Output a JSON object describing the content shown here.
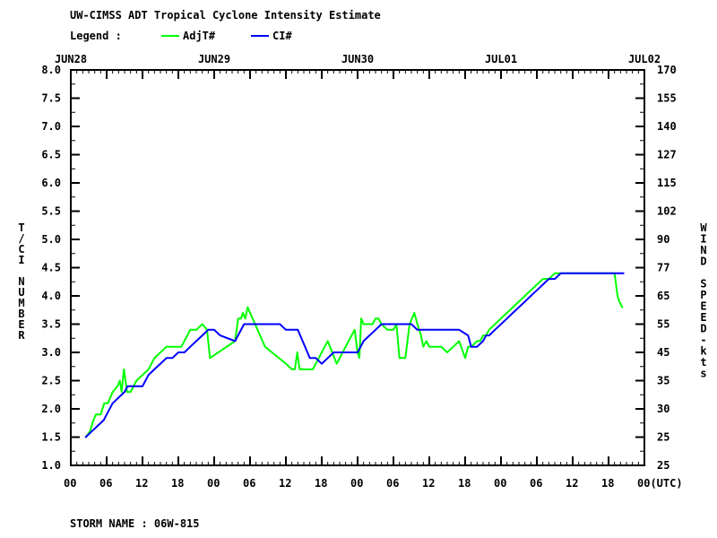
{
  "chart_data": {
    "type": "line",
    "title": "UW-CIMSS ADT Tropical Cyclone Intensity Estimate",
    "legend_prefix": "Legend :",
    "legend_placement": "top-left",
    "grid": false,
    "x_day_labels": [
      "JUN28",
      "JUN29",
      "JUN30",
      "JUL01",
      "JUL02"
    ],
    "x_hour_labels": [
      "00",
      "06",
      "12",
      "18",
      "00",
      "06",
      "12",
      "18",
      "00",
      "06",
      "12",
      "18",
      "00",
      "06",
      "12",
      "18",
      "00(UTC)"
    ],
    "xlim_hours": [
      0,
      96
    ],
    "ylabel_left": "T/CI NUMBER",
    "ylabel_right": "WIND SPEED-kts",
    "ylim": [
      1.0,
      8.0
    ],
    "y_ticks_left": [
      "1.0",
      "1.5",
      "2.0",
      "2.5",
      "3.0",
      "3.5",
      "4.0",
      "4.5",
      "5.0",
      "5.5",
      "6.0",
      "6.5",
      "7.0",
      "7.5",
      "8.0"
    ],
    "y_ticks_right": [
      "25",
      "25",
      "30",
      "35",
      "45",
      "55",
      "65",
      "77",
      "90",
      "102",
      "115",
      "127",
      "140",
      "155",
      "170"
    ],
    "footer": "STORM NAME : 06W-815",
    "series": [
      {
        "name": "AdjT#",
        "color": "#00ff00",
        "points": [
          [
            2.5,
            1.5
          ],
          [
            3.2,
            1.6
          ],
          [
            3.8,
            1.8
          ],
          [
            4.2,
            1.9
          ],
          [
            5.0,
            1.9
          ],
          [
            5.6,
            2.1
          ],
          [
            6.2,
            2.1
          ],
          [
            7.0,
            2.3
          ],
          [
            7.8,
            2.4
          ],
          [
            8.2,
            2.5
          ],
          [
            8.5,
            2.3
          ],
          [
            8.9,
            2.7
          ],
          [
            9.4,
            2.3
          ],
          [
            10.0,
            2.3
          ],
          [
            11.0,
            2.5
          ],
          [
            12.0,
            2.6
          ],
          [
            13.0,
            2.7
          ],
          [
            14.0,
            2.9
          ],
          [
            15.0,
            3.0
          ],
          [
            16.0,
            3.1
          ],
          [
            17.5,
            3.1
          ],
          [
            18.5,
            3.1
          ],
          [
            19.0,
            3.2
          ],
          [
            19.5,
            3.3
          ],
          [
            20.0,
            3.4
          ],
          [
            21.0,
            3.4
          ],
          [
            22.0,
            3.5
          ],
          [
            22.8,
            3.4
          ],
          [
            23.3,
            2.9
          ],
          [
            27.5,
            3.2
          ],
          [
            28.0,
            3.6
          ],
          [
            28.5,
            3.6
          ],
          [
            28.8,
            3.7
          ],
          [
            29.2,
            3.6
          ],
          [
            29.6,
            3.8
          ],
          [
            32.5,
            3.1
          ],
          [
            36.0,
            2.8
          ],
          [
            37.0,
            2.7
          ],
          [
            37.5,
            2.7
          ],
          [
            37.9,
            3.0
          ],
          [
            38.3,
            2.7
          ],
          [
            40.5,
            2.7
          ],
          [
            41.5,
            2.9
          ],
          [
            42.5,
            3.1
          ],
          [
            43.0,
            3.2
          ],
          [
            44.5,
            2.8
          ],
          [
            45.5,
            3.0
          ],
          [
            47.0,
            3.3
          ],
          [
            47.5,
            3.4
          ],
          [
            48.0,
            3.0
          ],
          [
            48.3,
            2.9
          ],
          [
            48.6,
            3.6
          ],
          [
            49.0,
            3.5
          ],
          [
            50.0,
            3.5
          ],
          [
            50.5,
            3.5
          ],
          [
            51.0,
            3.6
          ],
          [
            51.5,
            3.6
          ],
          [
            52.0,
            3.5
          ],
          [
            53.0,
            3.4
          ],
          [
            54.0,
            3.4
          ],
          [
            54.5,
            3.5
          ],
          [
            55.0,
            2.9
          ],
          [
            56.0,
            2.9
          ],
          [
            56.7,
            3.5
          ],
          [
            57.5,
            3.7
          ],
          [
            58.0,
            3.5
          ],
          [
            58.6,
            3.3
          ],
          [
            59.0,
            3.1
          ],
          [
            59.5,
            3.2
          ],
          [
            60.0,
            3.1
          ],
          [
            61.0,
            3.1
          ],
          [
            62.0,
            3.1
          ],
          [
            63.0,
            3.0
          ],
          [
            64.0,
            3.1
          ],
          [
            65.0,
            3.2
          ],
          [
            66.0,
            2.9
          ],
          [
            66.5,
            3.1
          ],
          [
            67.0,
            3.1
          ],
          [
            68.0,
            3.2
          ],
          [
            68.5,
            3.2
          ],
          [
            69.0,
            3.3
          ],
          [
            69.5,
            3.3
          ],
          [
            70.0,
            3.4
          ],
          [
            71.0,
            3.5
          ],
          [
            72.0,
            3.6
          ],
          [
            73.0,
            3.7
          ],
          [
            74.0,
            3.8
          ],
          [
            75.0,
            3.9
          ],
          [
            76.0,
            4.0
          ],
          [
            77.0,
            4.1
          ],
          [
            78.0,
            4.2
          ],
          [
            79.0,
            4.3
          ],
          [
            80.0,
            4.3
          ],
          [
            81.0,
            4.4
          ],
          [
            85.0,
            4.4
          ],
          [
            88.0,
            4.4
          ],
          [
            91.0,
            4.4
          ],
          [
            91.5,
            4.0
          ],
          [
            91.8,
            3.9
          ],
          [
            92.3,
            3.8
          ]
        ]
      },
      {
        "name": "CI#",
        "color": "#0000ff",
        "points": [
          [
            2.5,
            1.5
          ],
          [
            3.5,
            1.6
          ],
          [
            4.5,
            1.7
          ],
          [
            5.5,
            1.8
          ],
          [
            6.0,
            1.9
          ],
          [
            7.0,
            2.1
          ],
          [
            8.0,
            2.2
          ],
          [
            9.0,
            2.3
          ],
          [
            9.5,
            2.4
          ],
          [
            10.5,
            2.4
          ],
          [
            12.0,
            2.4
          ],
          [
            12.5,
            2.5
          ],
          [
            13.0,
            2.6
          ],
          [
            14.0,
            2.7
          ],
          [
            15.0,
            2.8
          ],
          [
            16.0,
            2.9
          ],
          [
            17.0,
            2.9
          ],
          [
            18.0,
            3.0
          ],
          [
            19.0,
            3.0
          ],
          [
            20.0,
            3.1
          ],
          [
            21.0,
            3.2
          ],
          [
            22.0,
            3.3
          ],
          [
            23.0,
            3.4
          ],
          [
            24.0,
            3.4
          ],
          [
            25.0,
            3.3
          ],
          [
            27.5,
            3.2
          ],
          [
            29.0,
            3.5
          ],
          [
            30.0,
            3.5
          ],
          [
            35.0,
            3.5
          ],
          [
            36.0,
            3.4
          ],
          [
            38.0,
            3.4
          ],
          [
            40.0,
            2.9
          ],
          [
            41.0,
            2.9
          ],
          [
            42.0,
            2.8
          ],
          [
            43.0,
            2.9
          ],
          [
            44.0,
            3.0
          ],
          [
            45.0,
            3.0
          ],
          [
            48.0,
            3.0
          ],
          [
            49.0,
            3.2
          ],
          [
            50.0,
            3.3
          ],
          [
            51.0,
            3.4
          ],
          [
            52.0,
            3.5
          ],
          [
            53.0,
            3.5
          ],
          [
            57.0,
            3.5
          ],
          [
            58.0,
            3.4
          ],
          [
            65.0,
            3.4
          ],
          [
            66.5,
            3.3
          ],
          [
            67.0,
            3.1
          ],
          [
            68.0,
            3.1
          ],
          [
            69.0,
            3.2
          ],
          [
            69.5,
            3.3
          ],
          [
            70.0,
            3.3
          ],
          [
            71.0,
            3.4
          ],
          [
            72.0,
            3.5
          ],
          [
            73.0,
            3.6
          ],
          [
            74.0,
            3.7
          ],
          [
            75.0,
            3.8
          ],
          [
            76.0,
            3.9
          ],
          [
            77.0,
            4.0
          ],
          [
            78.0,
            4.1
          ],
          [
            79.0,
            4.2
          ],
          [
            80.0,
            4.3
          ],
          [
            81.0,
            4.3
          ],
          [
            82.0,
            4.4
          ],
          [
            92.5,
            4.4
          ]
        ]
      }
    ]
  }
}
